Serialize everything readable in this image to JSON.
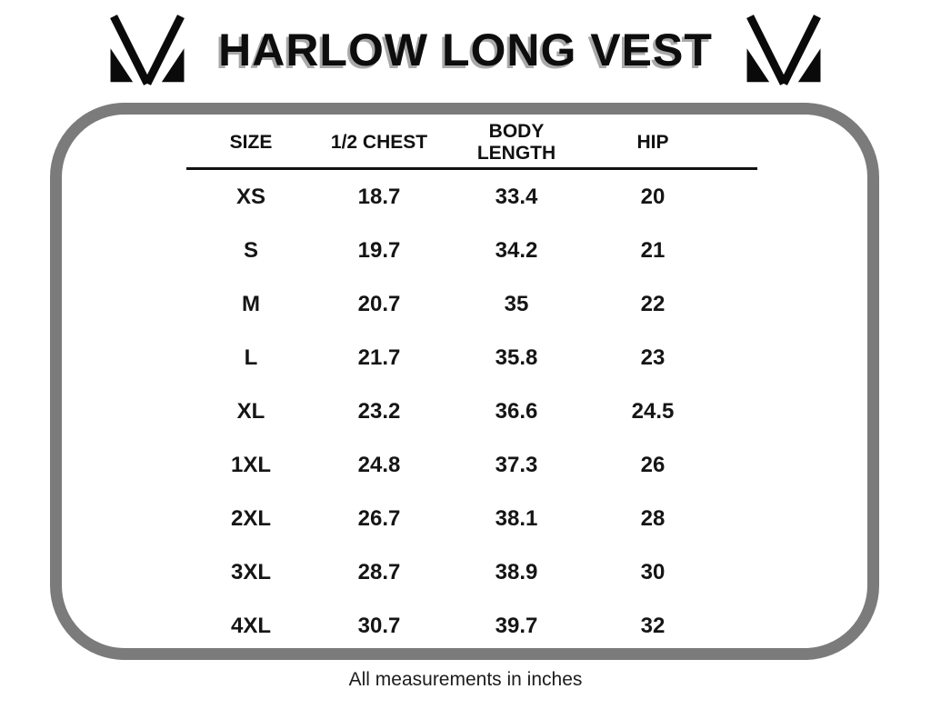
{
  "title": "HARLOW LONG VEST",
  "logo": {
    "name": "brand-monogram-icon",
    "color": "#0a0a0a"
  },
  "colors": {
    "background": "#ffffff",
    "frame_border": "#7b7b7b",
    "text": "#111111",
    "title_shadow": "#a9a9a9"
  },
  "footer_note": "All measurements in inches",
  "chart_data": {
    "type": "table",
    "title": "HARLOW LONG VEST",
    "columns": [
      "SIZE",
      "1/2 CHEST",
      "BODY LENGTH",
      "HIP"
    ],
    "rows": [
      [
        "XS",
        "18.7",
        "33.4",
        "20"
      ],
      [
        "S",
        "19.7",
        "34.2",
        "21"
      ],
      [
        "M",
        "20.7",
        "35",
        "22"
      ],
      [
        "L",
        "21.7",
        "35.8",
        "23"
      ],
      [
        "XL",
        "23.2",
        "36.6",
        "24.5"
      ],
      [
        "1XL",
        "24.8",
        "37.3",
        "26"
      ],
      [
        "2XL",
        "26.7",
        "38.1",
        "28"
      ],
      [
        "3XL",
        "28.7",
        "38.9",
        "30"
      ],
      [
        "4XL",
        "30.7",
        "39.7",
        "32"
      ]
    ],
    "units_note": "All measurements in inches",
    "layout": {
      "header_underline": true,
      "grid": "none",
      "legend": "none"
    }
  }
}
